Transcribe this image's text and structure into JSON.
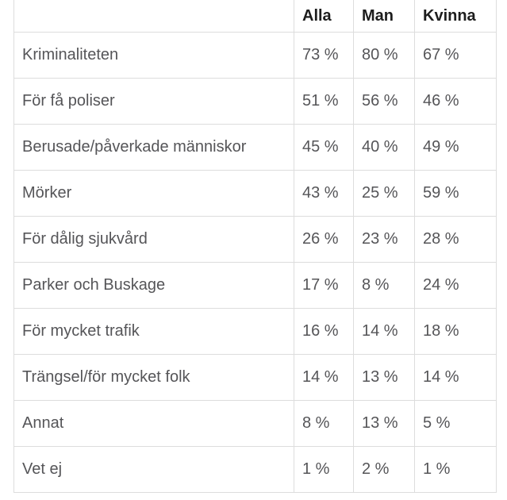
{
  "table": {
    "columns": [
      "",
      "Alla",
      "Man",
      "Kvinna"
    ],
    "rows": [
      {
        "label": "Kriminaliteten",
        "alla": "73 %",
        "man": "80 %",
        "kvinna": "67 %"
      },
      {
        "label": "För få poliser",
        "alla": "51 %",
        "man": "56 %",
        "kvinna": "46 %"
      },
      {
        "label": "Berusade/påverkade människor",
        "alla": "45 %",
        "man": "40 %",
        "kvinna": "49 %"
      },
      {
        "label": "Mörker",
        "alla": "43 %",
        "man": "25 %",
        "kvinna": "59 %"
      },
      {
        "label": "För dålig sjukvård",
        "alla": "26 %",
        "man": "23 %",
        "kvinna": "28 %"
      },
      {
        "label": "Parker och Buskage",
        "alla": "17 %",
        "man": "8 %",
        "kvinna": "24 %"
      },
      {
        "label": "För mycket trafik",
        "alla": "16 %",
        "man": "14 %",
        "kvinna": "18 %"
      },
      {
        "label": "Trängsel/för mycket folk",
        "alla": "14 %",
        "man": "13 %",
        "kvinna": "14 %"
      },
      {
        "label": "Annat",
        "alla": "8 %",
        "man": "13 %",
        "kvinna": "5 %"
      },
      {
        "label": "Vet ej",
        "alla": "1 %",
        "man": "2 %",
        "kvinna": "1 %"
      }
    ]
  },
  "chart_data": {
    "type": "table",
    "title": "",
    "categories": [
      "Kriminaliteten",
      "För få poliser",
      "Berusade/påverkade människor",
      "Mörker",
      "För dålig sjukvård",
      "Parker och Buskage",
      "För mycket trafik",
      "Trängsel/för mycket folk",
      "Annat",
      "Vet ej"
    ],
    "series": [
      {
        "name": "Alla",
        "values": [
          73,
          51,
          45,
          43,
          26,
          17,
          16,
          14,
          8,
          1
        ]
      },
      {
        "name": "Man",
        "values": [
          80,
          56,
          40,
          25,
          23,
          8,
          14,
          13,
          13,
          2
        ]
      },
      {
        "name": "Kvinna",
        "values": [
          67,
          46,
          49,
          59,
          28,
          24,
          18,
          14,
          5,
          1
        ]
      }
    ],
    "unit": "%"
  },
  "colors": {
    "header_text": "#1d1d1d",
    "body_text": "#555558",
    "border": "#dddddd",
    "background": "#ffffff"
  }
}
